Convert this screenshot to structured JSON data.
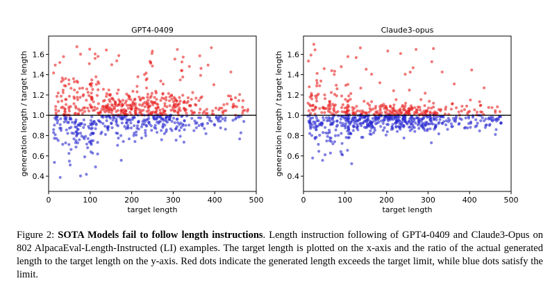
{
  "chart_data": [
    {
      "type": "scatter",
      "title": "GPT4-0409",
      "xlabel": "target length",
      "ylabel": "generation length / target length",
      "xlim": [
        0,
        500
      ],
      "ylim": [
        0.25,
        1.78
      ],
      "xticks": [
        0,
        100,
        200,
        300,
        400,
        500
      ],
      "yticks": [
        0.4,
        0.6,
        0.8,
        1.0,
        1.2,
        1.4,
        1.6
      ],
      "reference_line": 1.0,
      "series": [
        {
          "color": "#e82020",
          "condition": "ratio > 1",
          "points": []
        },
        {
          "color": "#2a2ad0",
          "condition": "ratio <= 1",
          "points": []
        }
      ]
    },
    {
      "type": "scatter",
      "title": "Claude3-opus",
      "xlabel": "target length",
      "ylabel": "generation length / target length",
      "xlim": [
        0,
        500
      ],
      "ylim": [
        0.25,
        1.78
      ],
      "xticks": [
        0,
        100,
        200,
        300,
        400,
        500
      ],
      "yticks": [
        0.4,
        0.6,
        0.8,
        1.0,
        1.2,
        1.4,
        1.6
      ],
      "reference_line": 1.0,
      "series": [
        {
          "color": "#e82020",
          "condition": "ratio > 1",
          "points": []
        },
        {
          "color": "#2a2ad0",
          "condition": "ratio <= 1",
          "points": []
        }
      ]
    }
  ],
  "caption": {
    "label": "Figure 2:",
    "bold": "SOTA Models fail to follow length instructions",
    "text": ". Length instruction following of GPT4-0409 and Claude3-Opus on 802 AlpacaEval-Length-Instructed (LI) examples. The target length is plotted on the x-axis and the ratio of the actual generated length to the target length on the y-axis. Red dots indicate the generated length exceeds the target limit, while blue dots satisfy the limit."
  }
}
